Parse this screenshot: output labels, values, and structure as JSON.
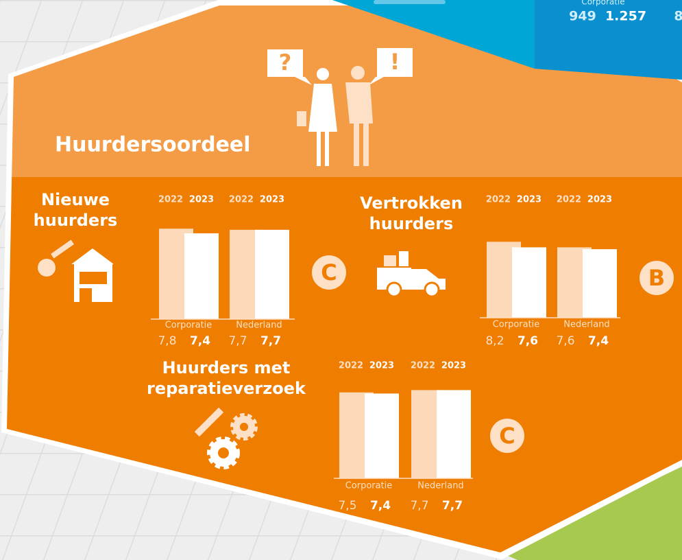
{
  "blue_panel": {
    "label": "Corporatie",
    "values": [
      "949",
      "1.257",
      "8"
    ]
  },
  "icons": {
    "question": "?",
    "exclamation": "!"
  },
  "title": "Huurdersoordeel",
  "panels": [
    {
      "title": [
        "Nieuwe",
        "huurders"
      ],
      "years": [
        "2022",
        "2023",
        "2022",
        "2023"
      ],
      "groups": [
        {
          "name": "Corporatie",
          "values": [
            7.8,
            7.4
          ],
          "value_labels": [
            "7,8",
            "7,4"
          ]
        },
        {
          "name": "Nederland",
          "values": [
            7.7,
            7.7
          ],
          "value_labels": [
            "7,7",
            "7,7"
          ]
        }
      ],
      "grade": "C"
    },
    {
      "title": [
        "Vertrokken",
        "huurders"
      ],
      "years": [
        "2022",
        "2023",
        "2022",
        "2023"
      ],
      "groups": [
        {
          "name": "Corporatie",
          "values": [
            8.2,
            7.6
          ],
          "value_labels": [
            "8,2",
            "7,6"
          ]
        },
        {
          "name": "Nederland",
          "values": [
            7.6,
            7.4
          ],
          "value_labels": [
            "7,6",
            "7,4"
          ]
        }
      ],
      "grade": "B"
    },
    {
      "title": [
        "Huurders met",
        "reparatieverzoek"
      ],
      "years": [
        "2022",
        "2023",
        "2022",
        "2023"
      ],
      "groups": [
        {
          "name": "Corporatie",
          "values": [
            7.5,
            7.4
          ],
          "value_labels": [
            "7,5",
            "7,4"
          ]
        },
        {
          "name": "Nederland",
          "values": [
            7.7,
            7.7
          ],
          "value_labels": [
            "7,7",
            "7,7"
          ]
        }
      ],
      "grade": "C"
    }
  ]
}
